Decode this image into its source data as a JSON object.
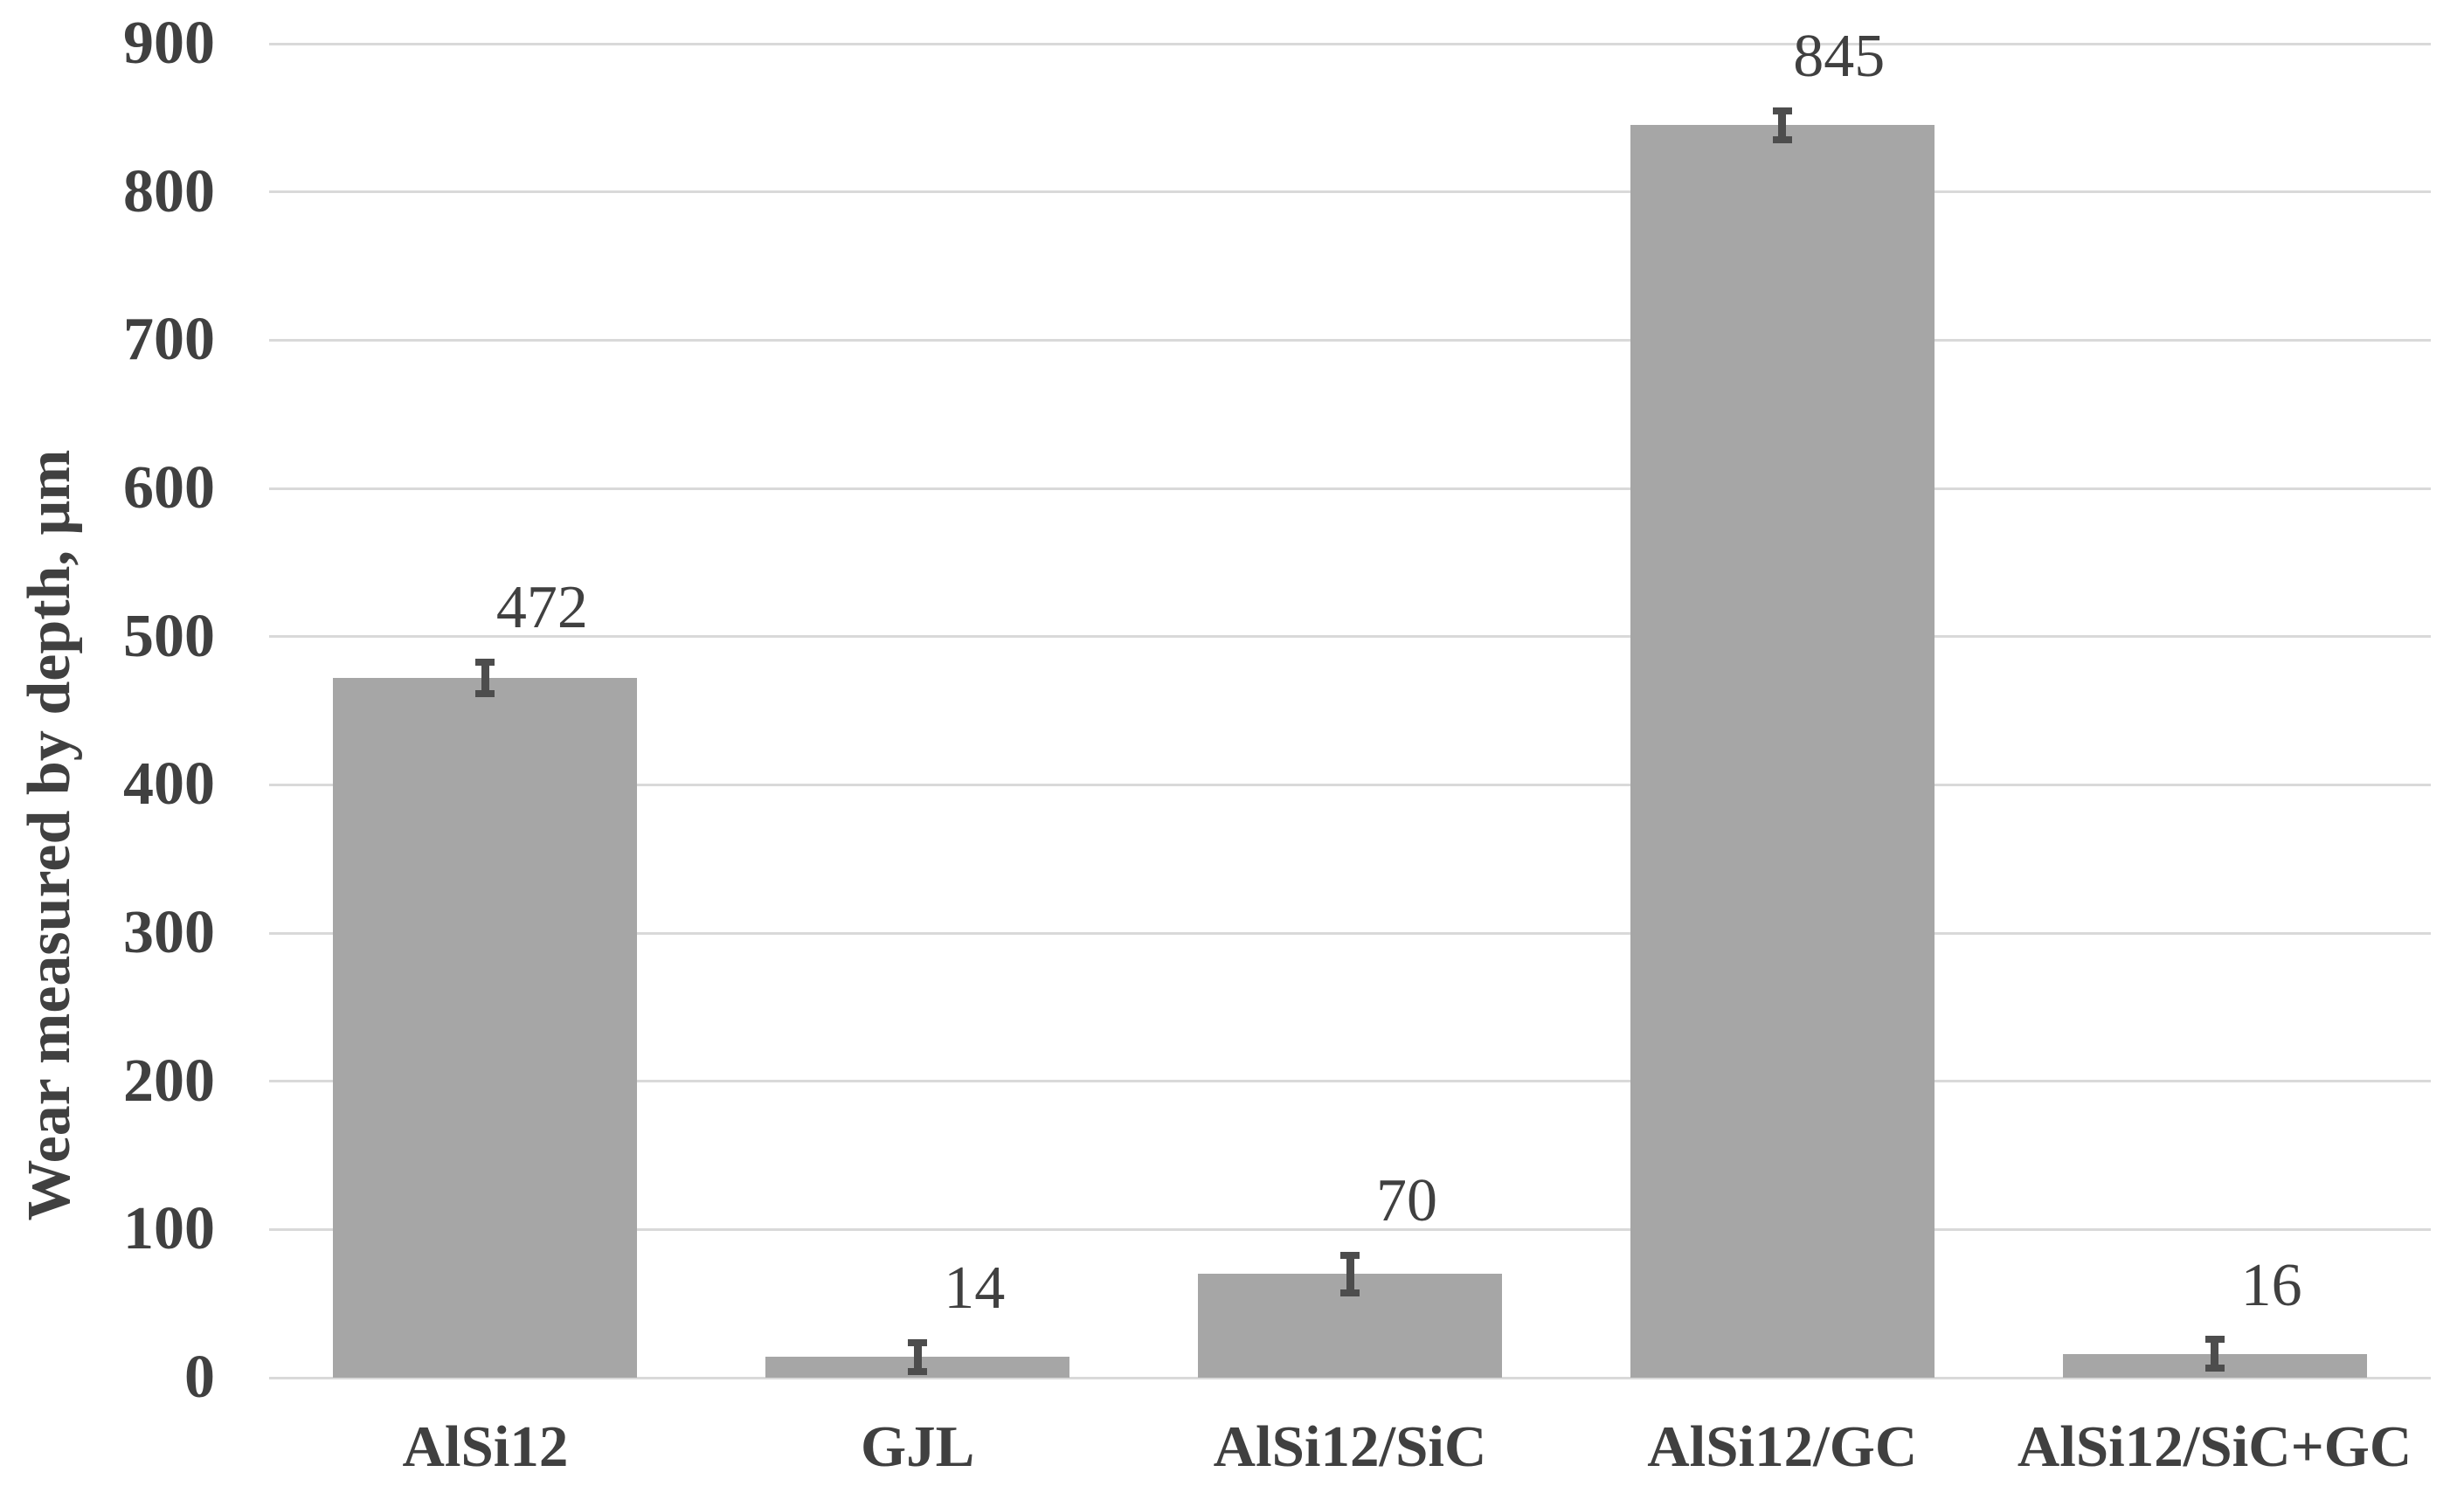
{
  "chart_data": {
    "type": "bar",
    "title": "",
    "xlabel": "",
    "ylabel": "Wear measured by depth, μm",
    "categories": [
      "AlSi12",
      "GJL",
      "AlSi12/SiC",
      "AlSi12/GC",
      "AlSi12/SiC+GC"
    ],
    "values": [
      472,
      14,
      70,
      845,
      16
    ],
    "data_labels": [
      "472",
      "14",
      "70",
      "845",
      "16"
    ],
    "error_bars_plus_minus": [
      13,
      12,
      15,
      12,
      12
    ],
    "ylim": [
      0,
      900
    ],
    "ytick_step": 100,
    "ytick_labels": [
      "0",
      "100",
      "200",
      "300",
      "400",
      "500",
      "600",
      "700",
      "800",
      "900"
    ],
    "grid": "horizontal-on",
    "legend": "none",
    "colors": {
      "bar": "#a6a6a6",
      "error_bar": "#4d4d4d",
      "text": "#404040",
      "gridline": "#d9d9d9",
      "background": "#ffffff"
    }
  }
}
